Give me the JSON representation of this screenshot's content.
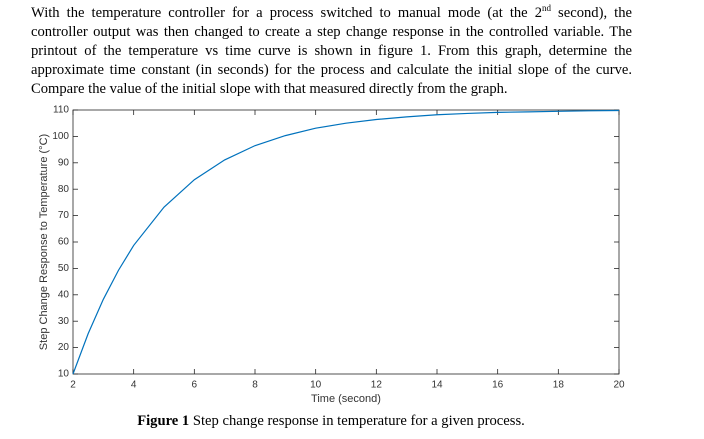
{
  "paragraph": {
    "text_before": "With the temperature controller for a process switched to manual mode (at the 2",
    "superscript": "nd",
    "text_after": " second), the controller output was then changed to create a step change response in the controlled variable. The printout of the temperature vs time curve is shown in figure 1. From this graph, determine the approximate time constant (in seconds) for the process and calculate the initial slope of the curve. Compare the value of the initial slope with that measured directly from the graph."
  },
  "chart_data": {
    "type": "line",
    "x_label": "Time (second)",
    "y_label": "Step Change Response to Temperature (°C)",
    "x": [
      2,
      2.5,
      3,
      3.5,
      4,
      5,
      6,
      7,
      8,
      9,
      10,
      11,
      12,
      13,
      14,
      15,
      16,
      17,
      18,
      19,
      20
    ],
    "values": [
      10,
      25.3,
      38.3,
      49.3,
      58.7,
      73.2,
      83.6,
      91.1,
      96.5,
      100.3,
      103.1,
      105.0,
      106.4,
      107.4,
      108.2,
      108.7,
      109.1,
      109.3,
      109.5,
      109.7,
      109.8
    ],
    "color": "#0072bd",
    "xlim": [
      2,
      20
    ],
    "xticks": [
      2,
      4,
      6,
      8,
      10,
      12,
      14,
      16,
      18,
      20
    ],
    "ylim": [
      10,
      110
    ],
    "yticks": [
      10,
      20,
      30,
      40,
      50,
      60,
      70,
      80,
      90,
      100,
      110
    ]
  },
  "caption": {
    "label": "Figure 1",
    "text": " Step change response in temperature for a given process."
  }
}
